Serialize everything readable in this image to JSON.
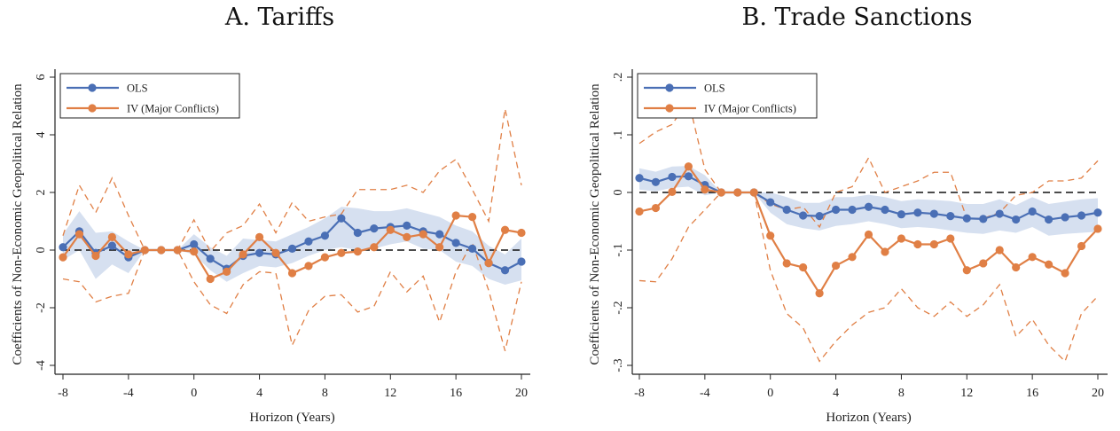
{
  "colors": {
    "ols": "#4a6fb5",
    "iv": "#e07f45",
    "ols_band": "#d6e0f0",
    "zero_line": "#111111",
    "axis": "#222222"
  },
  "chart_data": [
    {
      "type": "line",
      "title": "A. Tariffs",
      "xlabel": "Horizon (Years)",
      "ylabel": "Coefficients of Non-Economic Geopolitical Relation",
      "xlim": [
        -8,
        20
      ],
      "ylim": [
        -4,
        6
      ],
      "xticks": [
        -8,
        -4,
        0,
        4,
        8,
        12,
        16,
        20
      ],
      "xtick_labels": [
        "-8",
        "-4",
        "0",
        "4",
        "8",
        "12",
        "16",
        "20"
      ],
      "yticks": [
        -4,
        -2,
        0,
        2,
        4,
        6
      ],
      "ytick_labels": [
        "-4",
        "-2",
        "0",
        "2",
        "4",
        "6"
      ],
      "legend": {
        "position": "top-left",
        "entries": [
          "OLS",
          "IV (Major Conflicts)"
        ]
      },
      "x": [
        -8,
        -7,
        -6,
        -5,
        -4,
        -3,
        -2,
        -1,
        0,
        1,
        2,
        3,
        4,
        5,
        6,
        7,
        8,
        9,
        10,
        11,
        12,
        13,
        14,
        15,
        16,
        17,
        18,
        19,
        20
      ],
      "series": [
        {
          "name": "OLS",
          "values": [
            0.1,
            0.65,
            -0.1,
            0.15,
            -0.25,
            0,
            0,
            0,
            0.2,
            -0.3,
            -0.65,
            -0.2,
            -0.1,
            -0.15,
            0.05,
            0.3,
            0.5,
            1.1,
            0.6,
            0.75,
            0.8,
            0.85,
            0.65,
            0.55,
            0.25,
            0.05,
            -0.45,
            -0.7,
            -0.4
          ],
          "ci_lower": [
            -0.35,
            0.0,
            -1.0,
            -0.5,
            -0.8,
            0,
            0,
            0,
            -0.15,
            -0.7,
            -1.1,
            -0.8,
            -0.55,
            -0.6,
            -0.45,
            -0.2,
            0.0,
            0.1,
            0.0,
            0.05,
            0.2,
            0.3,
            0.05,
            0.0,
            -0.4,
            -0.55,
            -1.0,
            -1.2,
            -1.05
          ],
          "ci_upper": [
            0.55,
            1.35,
            0.6,
            0.65,
            0.3,
            0,
            0,
            0,
            0.55,
            0.1,
            -0.2,
            0.4,
            0.35,
            0.3,
            0.55,
            0.8,
            1.1,
            1.5,
            1.45,
            1.35,
            1.35,
            1.45,
            1.3,
            1.15,
            0.85,
            0.65,
            0.15,
            -0.15,
            0.4
          ]
        },
        {
          "name": "IV (Major Conflicts)",
          "values": [
            -0.25,
            0.55,
            -0.2,
            0.45,
            -0.15,
            0,
            0,
            0,
            -0.05,
            -1.0,
            -0.75,
            -0.15,
            0.45,
            -0.1,
            -0.8,
            -0.55,
            -0.25,
            -0.1,
            -0.05,
            0.1,
            0.7,
            0.45,
            0.55,
            0.1,
            1.2,
            1.15,
            -0.45,
            0.7,
            0.6
          ],
          "ci_lower": [
            -1.0,
            -1.1,
            -1.8,
            -1.6,
            -1.5,
            0,
            0,
            0,
            -1.1,
            -1.9,
            -2.2,
            -1.2,
            -0.75,
            -0.8,
            -3.3,
            -2.1,
            -1.6,
            -1.55,
            -2.15,
            -1.95,
            -0.75,
            -1.45,
            -0.9,
            -2.5,
            -0.75,
            0.25,
            -1.4,
            -3.5,
            -1.1
          ],
          "ci_upper": [
            0.5,
            2.25,
            1.3,
            2.5,
            1.2,
            0,
            0,
            0,
            1.05,
            -0.05,
            0.6,
            0.85,
            1.6,
            0.6,
            1.65,
            1.0,
            1.15,
            1.25,
            2.1,
            2.1,
            2.1,
            2.25,
            2.0,
            2.75,
            3.15,
            2.1,
            1.0,
            4.9,
            2.25
          ]
        }
      ]
    },
    {
      "type": "line",
      "title": "B. Trade Sanctions",
      "xlabel": "Horizon (Years)",
      "ylabel": "Coefficients of Non-Economic Geopolitical Relation",
      "xlim": [
        -8,
        20
      ],
      "ylim": [
        -0.3,
        0.2
      ],
      "xticks": [
        -8,
        -4,
        0,
        4,
        8,
        12,
        16,
        20
      ],
      "xtick_labels": [
        "-8",
        "-4",
        "0",
        "4",
        "8",
        "12",
        "16",
        "20"
      ],
      "yticks": [
        -0.3,
        -0.2,
        -0.1,
        0,
        0.1,
        0.2
      ],
      "ytick_labels": [
        "-.3",
        "-.2",
        "-.1",
        "0",
        ".1",
        ".2"
      ],
      "legend": {
        "position": "top-left",
        "entries": [
          "OLS",
          "IV (Major Conflicts)"
        ]
      },
      "x": [
        -8,
        -7,
        -6,
        -5,
        -4,
        -3,
        -2,
        -1,
        0,
        1,
        2,
        3,
        4,
        5,
        6,
        7,
        8,
        9,
        10,
        11,
        12,
        13,
        14,
        15,
        16,
        17,
        18,
        19,
        20
      ],
      "series": [
        {
          "name": "OLS",
          "values": [
            0.025,
            0.018,
            0.027,
            0.028,
            0.013,
            0,
            0,
            0,
            -0.017,
            -0.03,
            -0.04,
            -0.041,
            -0.03,
            -0.03,
            -0.025,
            -0.03,
            -0.038,
            -0.035,
            -0.037,
            -0.041,
            -0.045,
            -0.046,
            -0.037,
            -0.047,
            -0.033,
            -0.047,
            -0.043,
            -0.04,
            -0.035
          ],
          "ci_lower": [
            0.005,
            0.002,
            0.008,
            0.01,
            -0.005,
            0,
            0,
            0,
            -0.035,
            -0.055,
            -0.062,
            -0.066,
            -0.058,
            -0.055,
            -0.05,
            -0.055,
            -0.062,
            -0.06,
            -0.062,
            -0.066,
            -0.07,
            -0.072,
            -0.066,
            -0.07,
            -0.06,
            -0.075,
            -0.072,
            -0.07,
            -0.068
          ],
          "ci_upper": [
            0.042,
            0.036,
            0.045,
            0.046,
            0.03,
            0,
            0,
            0,
            0.0,
            -0.008,
            -0.018,
            -0.018,
            -0.008,
            -0.008,
            -0.004,
            -0.008,
            -0.015,
            -0.012,
            -0.013,
            -0.015,
            -0.02,
            -0.02,
            -0.012,
            -0.022,
            -0.008,
            -0.02,
            -0.016,
            -0.012,
            -0.01
          ]
        },
        {
          "name": "IV (Major Conflicts)",
          "values": [
            -0.033,
            -0.027,
            0.001,
            0.045,
            0.005,
            0,
            0,
            0,
            -0.075,
            -0.123,
            -0.13,
            -0.175,
            -0.127,
            -0.112,
            -0.073,
            -0.103,
            -0.08,
            -0.09,
            -0.09,
            -0.08,
            -0.135,
            -0.123,
            -0.1,
            -0.13,
            -0.112,
            -0.125,
            -0.14,
            -0.093,
            -0.063
          ],
          "ci_lower": [
            -0.153,
            -0.155,
            -0.115,
            -0.06,
            -0.03,
            0,
            0,
            0,
            -0.135,
            -0.21,
            -0.235,
            -0.293,
            -0.258,
            -0.23,
            -0.208,
            -0.2,
            -0.167,
            -0.2,
            -0.215,
            -0.19,
            -0.215,
            -0.195,
            -0.16,
            -0.25,
            -0.22,
            -0.265,
            -0.293,
            -0.21,
            -0.18
          ],
          "ci_upper": [
            0.085,
            0.105,
            0.118,
            0.16,
            0.04,
            0,
            0,
            0,
            -0.02,
            -0.03,
            -0.025,
            -0.06,
            0.0,
            0.01,
            0.06,
            0.0,
            0.01,
            0.02,
            0.035,
            0.035,
            -0.045,
            -0.045,
            -0.035,
            -0.005,
            0.0,
            0.02,
            0.02,
            0.025,
            0.055
          ]
        }
      ]
    }
  ]
}
